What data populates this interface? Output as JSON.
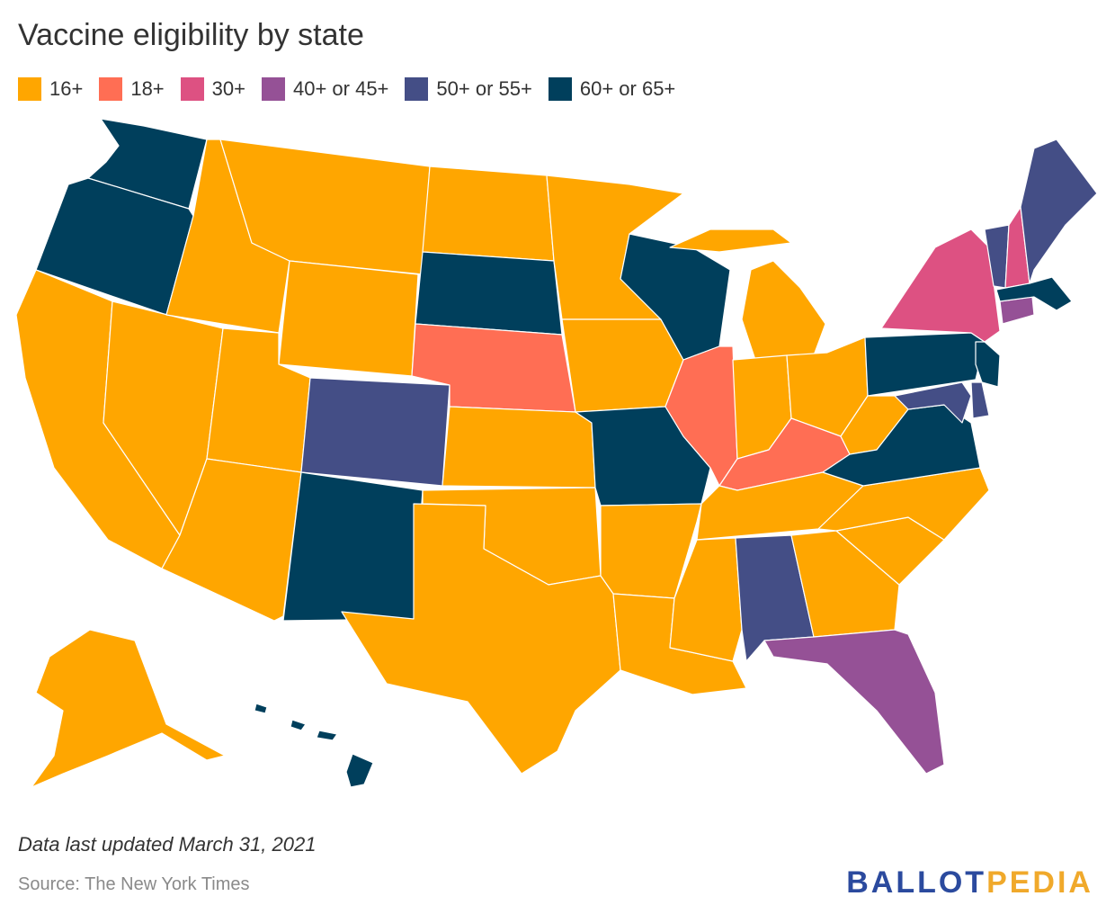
{
  "title": "Vaccine eligibility by state",
  "legend": [
    {
      "label": "16+",
      "color": "#FFA600"
    },
    {
      "label": "18+",
      "color": "#FF6E54"
    },
    {
      "label": "30+",
      "color": "#DD5182"
    },
    {
      "label": "40+ or 45+",
      "color": "#955196"
    },
    {
      "label": "50+ or 55+",
      "color": "#444E86"
    },
    {
      "label": "60+ or 65+",
      "color": "#003F5C"
    }
  ],
  "state_groups": {
    "16+": [
      "AK",
      "ID",
      "MT",
      "ND",
      "MN",
      "WY",
      "UT",
      "NV",
      "CA",
      "AZ",
      "KS",
      "OK",
      "TX",
      "IA",
      "AR",
      "LA",
      "MS",
      "MI",
      "IN",
      "OH",
      "WV",
      "TN",
      "GA",
      "SC",
      "NC"
    ],
    "18+": [
      "NE",
      "IL",
      "KY"
    ],
    "30+": [
      "NY",
      "NH"
    ],
    "40+ or 45+": [
      "FL",
      "CT"
    ],
    "50+ or 55+": [
      "CO",
      "AL",
      "ME",
      "VT",
      "MD",
      "DE"
    ],
    "60+ or 65+": [
      "WA",
      "OR",
      "SD",
      "NM",
      "WI",
      "MO",
      "PA",
      "NJ",
      "VA",
      "MA",
      "HI"
    ]
  },
  "footer": {
    "note": "Data last updated March 31, 2021",
    "source": "Source: The New York Times",
    "brand_part1": "BALLOT",
    "brand_part2": "PEDIA"
  }
}
